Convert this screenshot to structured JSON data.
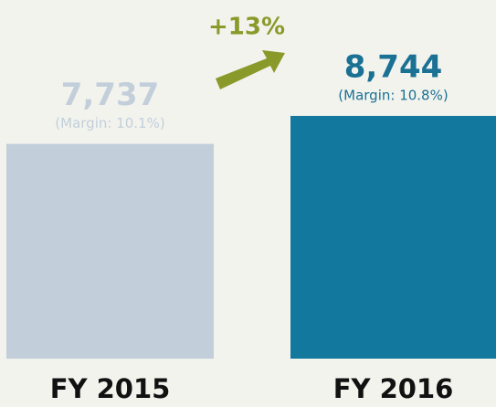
{
  "chart_data": {
    "type": "bar",
    "categories": [
      "FY 2015",
      "FY 2016"
    ],
    "values": [
      7737,
      8744
    ],
    "value_labels": [
      "7,737",
      "8,744"
    ],
    "margin_labels": [
      "(Margin: 10.1%)",
      "(Margin: 10.8%)"
    ],
    "colors": [
      "#c2cfdb",
      "#12789d"
    ],
    "label_colors": [
      "#c2cfdb",
      "#1a7194"
    ],
    "change_label": "+13%",
    "change_color": "#8a9a2a"
  }
}
